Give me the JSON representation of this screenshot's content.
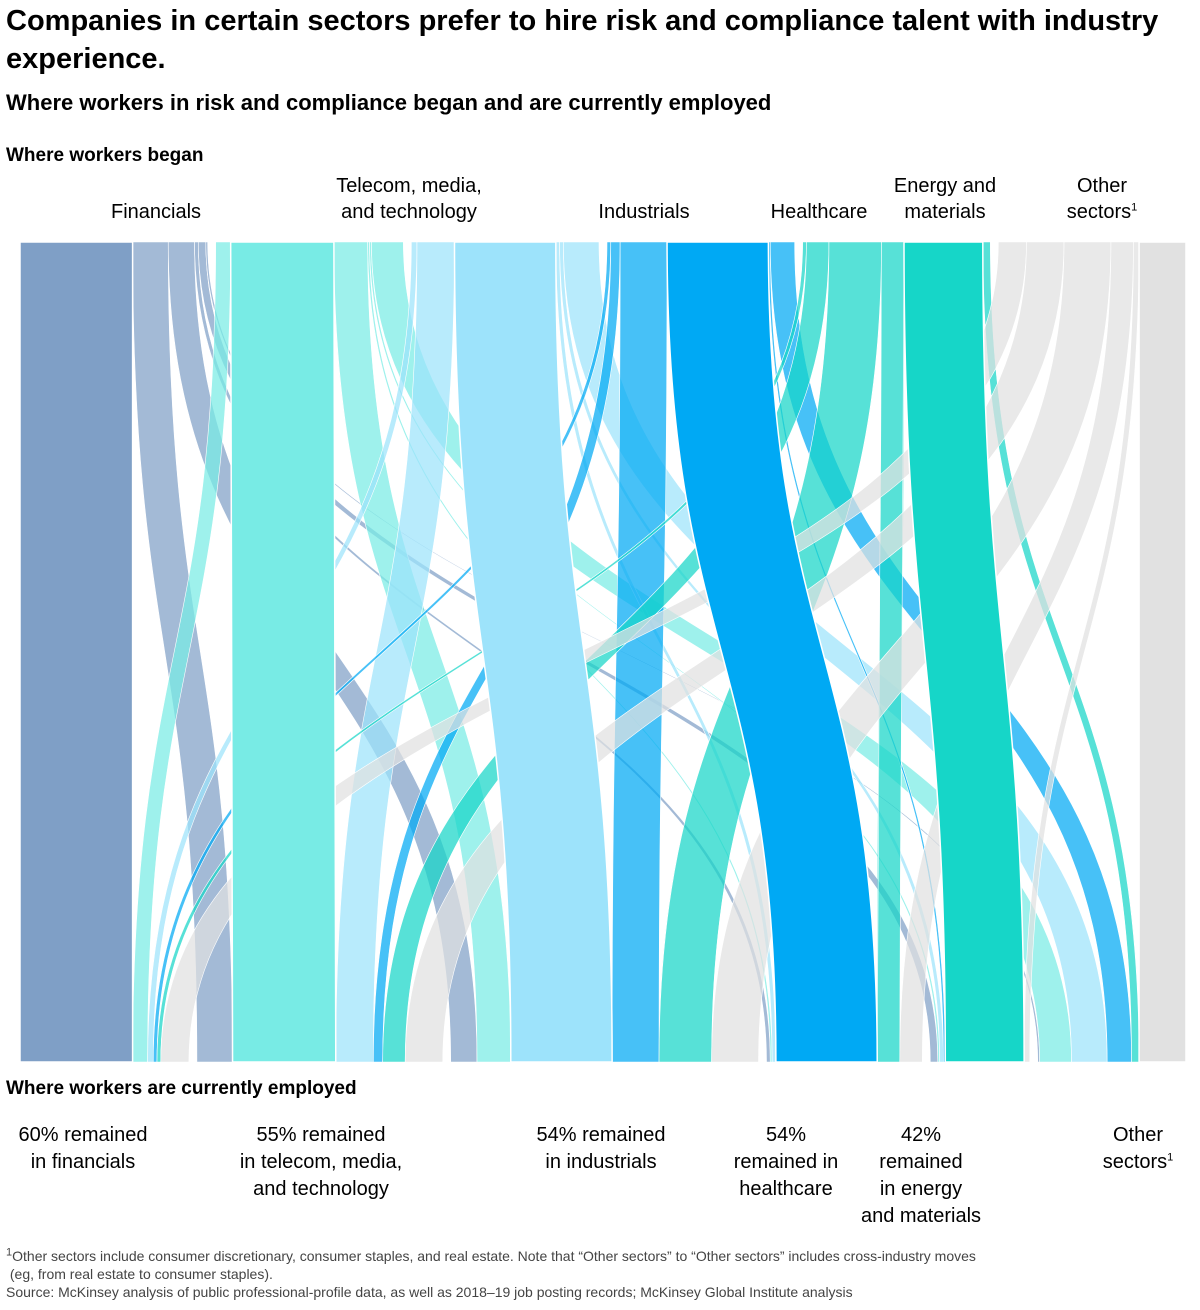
{
  "title": "Companies in certain sectors prefer to hire risk and compliance talent with industry experience.",
  "subtitle": "Where workers in risk and compliance began and are currently employed",
  "top_section_label": "Where workers began",
  "bottom_section_label": "Where workers are currently employed",
  "colors": {
    "Financials": "#7f9fc6",
    "Telecom, media, and technology": "#78ebe5",
    "Industrials": "#9de3fb",
    "Healthcare": "#00a9f4",
    "Energy and materials": "#16d6c8",
    "Other sectors": "#e1e1e1"
  },
  "origin_labels": [
    {
      "key": "Financials",
      "lines": [
        "Financials"
      ],
      "sup": ""
    },
    {
      "key": "Telecom, media, and technology",
      "lines": [
        "Telecom, media,",
        "and technology"
      ],
      "sup": ""
    },
    {
      "key": "Industrials",
      "lines": [
        "Industrials"
      ],
      "sup": ""
    },
    {
      "key": "Healthcare",
      "lines": [
        "Healthcare"
      ],
      "sup": ""
    },
    {
      "key": "Energy and materials",
      "lines": [
        "Energy and",
        "materials"
      ],
      "sup": ""
    },
    {
      "key": "Other sectors",
      "lines": [
        "Other",
        "sectors"
      ],
      "sup": "1"
    }
  ],
  "destination_labels": [
    {
      "key": "Financials",
      "lines": [
        "60% remained",
        "in financials"
      ],
      "sup": ""
    },
    {
      "key": "Telecom, media, and technology",
      "lines": [
        "55% remained",
        "in telecom, media,",
        "and technology"
      ],
      "sup": ""
    },
    {
      "key": "Industrials",
      "lines": [
        "54% remained",
        "in industrials"
      ],
      "sup": ""
    },
    {
      "key": "Healthcare",
      "lines": [
        "54%",
        "remained in",
        "healthcare"
      ],
      "sup": ""
    },
    {
      "key": "Energy and materials",
      "lines": [
        "42%",
        "remained",
        "in energy",
        "and materials"
      ],
      "sup": ""
    },
    {
      "key": "Other sectors",
      "lines": [
        "Other",
        "sectors"
      ],
      "sup": "1"
    }
  ],
  "chart_data": {
    "type": "sankey",
    "title": "Where workers in risk and compliance began and are currently employed",
    "source_axis_label": "Where workers began",
    "target_axis_label": "Where workers are currently employed",
    "nodes": [
      "Financials",
      "Telecom, media, and technology",
      "Industrials",
      "Healthcare",
      "Energy and materials",
      "Other sectors"
    ],
    "flows": [
      {
        "from": "Financials",
        "to": "Financials",
        "value": 60
      },
      {
        "from": "Financials",
        "to": "Telecom, media, and technology",
        "value": 19
      },
      {
        "from": "Financials",
        "to": "Industrials",
        "value": 14
      },
      {
        "from": "Financials",
        "to": "Healthcare",
        "value": 2
      },
      {
        "from": "Financials",
        "to": "Energy and materials",
        "value": 4
      },
      {
        "from": "Financials",
        "to": "Other sectors",
        "value": 1
      },
      {
        "from": "Telecom, media, and technology",
        "to": "Financials",
        "value": 8
      },
      {
        "from": "Telecom, media, and technology",
        "to": "Telecom, media, and technology",
        "value": 55
      },
      {
        "from": "Telecom, media, and technology",
        "to": "Industrials",
        "value": 18
      },
      {
        "from": "Telecom, media, and technology",
        "to": "Healthcare",
        "value": 1
      },
      {
        "from": "Telecom, media, and technology",
        "to": "Energy and materials",
        "value": 1
      },
      {
        "from": "Telecom, media, and technology",
        "to": "Other sectors",
        "value": 17
      },
      {
        "from": "Industrials",
        "to": "Financials",
        "value": 3
      },
      {
        "from": "Industrials",
        "to": "Telecom, media, and technology",
        "value": 20
      },
      {
        "from": "Industrials",
        "to": "Industrials",
        "value": 54
      },
      {
        "from": "Industrials",
        "to": "Healthcare",
        "value": 2
      },
      {
        "from": "Industrials",
        "to": "Energy and materials",
        "value": 2
      },
      {
        "from": "Industrials",
        "to": "Other sectors",
        "value": 19
      },
      {
        "from": "Healthcare",
        "to": "Financials",
        "value": 2
      },
      {
        "from": "Healthcare",
        "to": "Telecom, media, and technology",
        "value": 5
      },
      {
        "from": "Healthcare",
        "to": "Industrials",
        "value": 25
      },
      {
        "from": "Healthcare",
        "to": "Healthcare",
        "value": 54
      },
      {
        "from": "Healthcare",
        "to": "Energy and materials",
        "value": 1
      },
      {
        "from": "Healthcare",
        "to": "Other sectors",
        "value": 13
      },
      {
        "from": "Energy and materials",
        "to": "Financials",
        "value": 2
      },
      {
        "from": "Energy and materials",
        "to": "Telecom, media, and technology",
        "value": 12
      },
      {
        "from": "Energy and materials",
        "to": "Industrials",
        "value": 28
      },
      {
        "from": "Energy and materials",
        "to": "Healthcare",
        "value": 12
      },
      {
        "from": "Energy and materials",
        "to": "Energy and materials",
        "value": 42
      },
      {
        "from": "Energy and materials",
        "to": "Other sectors",
        "value": 4
      },
      {
        "from": "Other sectors",
        "to": "Financials",
        "value": 15
      },
      {
        "from": "Other sectors",
        "to": "Telecom, media, and technology",
        "value": 20
      },
      {
        "from": "Other sectors",
        "to": "Industrials",
        "value": 25
      },
      {
        "from": "Other sectors",
        "to": "Healthcare",
        "value": 12
      },
      {
        "from": "Other sectors",
        "to": "Energy and materials",
        "value": 3
      },
      {
        "from": "Other sectors",
        "to": "Other sectors",
        "value": 25
      }
    ]
  },
  "footnotes": [
    {
      "sup": "1",
      "text": "Other sectors include consumer discretionary, consumer staples, and real estate. Note that “Other sectors” to “Other sectors” includes cross-industry moves"
    },
    {
      "sup": "",
      "text": "(eg, from real estate to consumer staples)."
    },
    {
      "sup": "",
      "text": "Source: McKinsey analysis of public professional-profile data, as well as 2018–19 job posting records; McKinsey Global Institute analysis"
    }
  ]
}
